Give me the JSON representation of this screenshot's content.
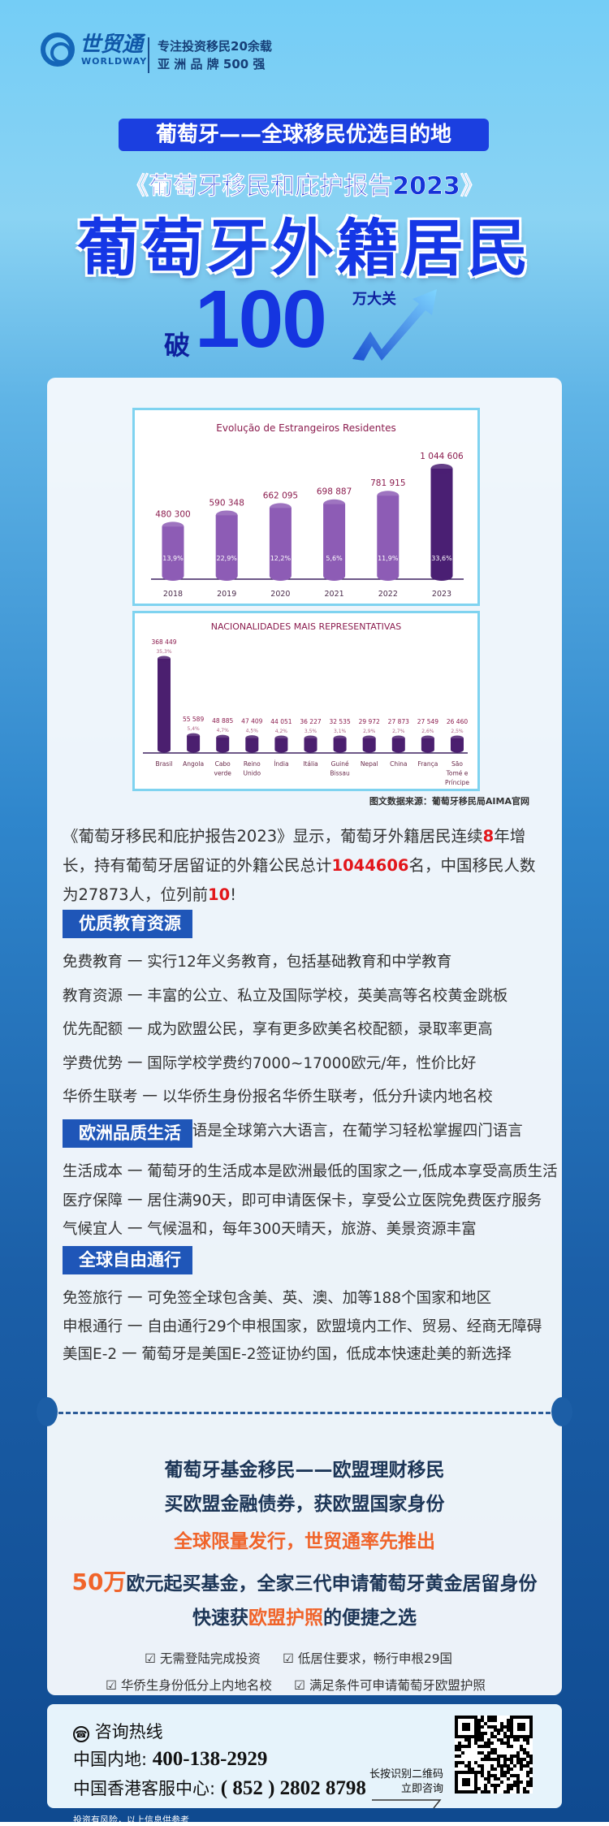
{
  "header": {
    "logo_cn": "世贸通",
    "logo_en": "WORLDWAY",
    "registered": "®",
    "slogan_line1": "专注投资移民20余载",
    "slogan_line2": "亚 洲 品 牌 500 强"
  },
  "hero": {
    "banner": "葡萄牙——全球移民优选目的地",
    "subtitle": "《葡萄牙移民和庇护报告2023》",
    "title": "葡萄牙外籍居民",
    "prefix": "破",
    "number": "100",
    "suffix": "万大关"
  },
  "chart_data": [
    {
      "type": "bar",
      "title": "Evolução de Estrangeiros Residentes",
      "categories": [
        "2018",
        "2019",
        "2020",
        "2021",
        "2022",
        "2023"
      ],
      "values": [
        480300,
        590348,
        662095,
        698887,
        781915,
        1044606
      ],
      "value_labels": [
        "480 300",
        "590 348",
        "662 095",
        "698 887",
        "781 915",
        "1 044 606"
      ],
      "growth_labels": [
        "13,9%",
        "22,9%",
        "12,2%",
        "5,6%",
        "11,9%",
        "33,6%"
      ],
      "colors": {
        "bar": "#8d5cb5",
        "highlight": "#4a1f73",
        "title": "#8b1c4e"
      }
    },
    {
      "type": "bar",
      "title": "NACIONALIDADES MAIS REPRESENTATIVAS",
      "categories": [
        "Brasil",
        "Angola",
        "Cabo verde",
        "Reino Unido",
        "Índia",
        "Itália",
        "Guiné Bissau",
        "Nepal",
        "China",
        "França",
        "São Tomé e Príncipe"
      ],
      "values": [
        368449,
        55589,
        48885,
        47409,
        44051,
        36227,
        32535,
        29972,
        27873,
        27549,
        26460
      ],
      "value_labels": [
        "368 449",
        "55 589",
        "48 885",
        "47 409",
        "44 051",
        "36 227",
        "32 535",
        "29 972",
        "27 873",
        "27 549",
        "26 460"
      ],
      "share_labels": [
        "35,3%",
        "5,4%",
        "4,7%",
        "4,5%",
        "4,2%",
        "3,5%",
        "3,1%",
        "2,9%",
        "2,7%",
        "2,6%",
        "2,5%"
      ],
      "colors": {
        "bar": "#4b1f6f",
        "title": "#8b1c4e"
      }
    }
  ],
  "source": "图文数据来源：葡萄牙移民局AIMA官网",
  "intro": {
    "p1": "《葡萄牙移民和庇护报告2023》显示，葡萄牙外籍居民连续",
    "h1": "8",
    "p2": "年增长，持有葡萄牙居留证的外籍公民总计",
    "h2": "1044606",
    "p3": "名，中国移民人数为27873人，位列前",
    "h3": "10",
    "p4": "!"
  },
  "sections": [
    {
      "title": "优质教育资源",
      "items": [
        "免费教育 一 实行12年义务教育，包括基础教育和中学教育",
        "教育资源 一 丰富的公立、私立及国际学校，英美高等名校黄金跳板",
        "优先配额 一 成为欧盟公民，享有更多欧美名校配额，录取率更高",
        "学费优势 一 国际学校学费约7000~17000欧元/年，性价比好",
        "华侨生联考 一 以华侨生身份报名华侨生联考，低分升读内地名校",
        "语言优势 一 葡萄牙语是全球第六大语言，在葡学习轻松掌握四门语言"
      ]
    },
    {
      "title": "欧洲品质生活",
      "items": [
        "生活成本 一 葡萄牙的生活成本是欧洲最低的国家之一,低成本享受高质生活",
        "医疗保障 一 居住满90天，即可申请医保卡，享受公立医院免费医疗服务",
        "气候宜人 一 气候温和，每年300天晴天，旅游、美景资源丰富"
      ]
    },
    {
      "title": "全球自由通行",
      "items": [
        "免签旅行 一 可免签全球包含美、英、澳、加等188个国家和地区",
        "申根通行 一 自由通行29个申根国家，欧盟境内工作、贸易、经商无障碍",
        "美国E-2 一 葡萄牙是美国E-2签证协约国，低成本快速赴美的新选择"
      ]
    }
  ],
  "promo": {
    "line1": "葡萄牙基金移民——欧盟理财移民",
    "line2": "买欧盟金融债券，获欧盟国家身份",
    "line3": "全球限量发行，世贸通率先推出",
    "line4_num": "50万",
    "line4_rest": "欧元起买基金，全家三代申请葡萄牙黄金居留身份",
    "line5_a": "快速获",
    "line5_b": "欧盟护照",
    "line5_c": "的便捷之选",
    "checks": [
      "无需登陆完成投资",
      "低居住要求，畅行申根29国",
      "华侨生身份低分上内地名校",
      "满足条件可申请葡萄牙欧盟护照"
    ]
  },
  "contact": {
    "title": "咨询热线",
    "mainland_label": "中国内地: ",
    "mainland_phone": "400-138-2929",
    "hk_label": "中国香港客服中心: ",
    "hk_phone": "( 852 ) 2802 8798",
    "qr_hint1": "长按识别二维码",
    "qr_hint2": "立即咨询"
  },
  "footer": {
    "disclaimer": "投资有风险，以上信息供参考"
  }
}
